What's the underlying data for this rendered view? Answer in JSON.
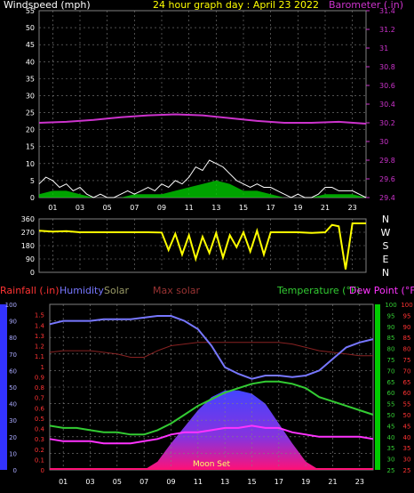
{
  "header": {
    "left_label": "Windspeed (mph)",
    "title": "24 hour graph day : April 23 2022",
    "right_label": "Barometer (.in)"
  },
  "colors": {
    "background": "#000000",
    "grid": "#808080",
    "windspeed": "#ffffff",
    "gust_fill": "#00cc00",
    "barometer": "#cc33cc",
    "direction": "#ffff00",
    "rainfall": "#ff3333",
    "humidity": "#7777ff",
    "solar": "#999966",
    "max_solar": "#882222",
    "temperature": "#33cc33",
    "dew_point": "#ff33ff",
    "temp_axis": "#00cc00",
    "dew_axis": "#ff3333"
  },
  "chart_data": [
    {
      "type": "line",
      "name": "wind-barometer",
      "x_ticks": [
        "01",
        "03",
        "05",
        "07",
        "09",
        "11",
        "13",
        "15",
        "17",
        "19",
        "21",
        "23"
      ],
      "x_range_hours": [
        0,
        24
      ],
      "left_axis": {
        "label": "Windspeed (mph)",
        "range": [
          0,
          55
        ],
        "ticks": [
          0,
          5,
          10,
          15,
          20,
          25,
          30,
          35,
          40,
          45,
          50,
          55
        ]
      },
      "right_axis": {
        "label": "Barometer (.in)",
        "range": [
          29.4,
          31.4
        ],
        "ticks": [
          "29.4",
          "29.6",
          "29.8",
          "30",
          "30.2",
          "30.4",
          "30.6",
          "30.8",
          "31",
          "31.2",
          "31.4"
        ]
      },
      "barometer": {
        "x": [
          0,
          2,
          4,
          6,
          8,
          10,
          12,
          14,
          16,
          18,
          20,
          22,
          24
        ],
        "y": [
          30.2,
          30.21,
          30.23,
          30.26,
          30.28,
          30.29,
          30.28,
          30.25,
          30.22,
          30.2,
          30.2,
          30.21,
          30.19
        ]
      },
      "windspeed": {
        "x": [
          0,
          0.5,
          1,
          1.5,
          2,
          2.5,
          3,
          3.5,
          4,
          4.5,
          5,
          5.5,
          6,
          6.5,
          7,
          7.5,
          8,
          8.5,
          9,
          9.5,
          10,
          10.5,
          11,
          11.5,
          12,
          12.5,
          13,
          13.5,
          14,
          14.5,
          15,
          15.5,
          16,
          16.5,
          17,
          17.5,
          18,
          18.5,
          19,
          19.5,
          20,
          20.5,
          21,
          21.5,
          22,
          22.5,
          23,
          23.5,
          24
        ],
        "y": [
          4,
          6,
          5,
          3,
          4,
          2,
          3,
          1,
          0,
          1,
          0,
          0,
          1,
          2,
          1,
          2,
          3,
          2,
          4,
          3,
          5,
          4,
          6,
          9,
          8,
          11,
          10,
          9,
          7,
          5,
          4,
          3,
          4,
          3,
          3,
          2,
          1,
          0,
          1,
          0,
          0,
          1,
          3,
          3,
          2,
          2,
          2,
          1,
          0
        ]
      },
      "gust": {
        "x": [
          0,
          1,
          2,
          3,
          4,
          5,
          6,
          7,
          8,
          9,
          10,
          11,
          12,
          13,
          14,
          15,
          16,
          17,
          18,
          19,
          20,
          21,
          22,
          23,
          24
        ],
        "y": [
          1,
          2,
          2,
          1,
          0,
          0,
          0,
          1,
          1,
          1,
          2,
          3,
          4,
          5,
          4,
          2,
          2,
          1,
          0,
          0,
          0,
          1,
          1,
          1,
          0
        ]
      }
    },
    {
      "type": "line",
      "name": "wind-direction",
      "y_ticks": [
        "360",
        "270",
        "180",
        "90",
        "0"
      ],
      "y_range": [
        0,
        360
      ],
      "compass_labels": [
        "N",
        "W",
        "S",
        "E",
        "N"
      ],
      "x": [
        0,
        1,
        2,
        3,
        4,
        5,
        6,
        7,
        8,
        9,
        9.5,
        10,
        10.5,
        11,
        11.5,
        12,
        12.5,
        13,
        13.5,
        14,
        14.5,
        15,
        15.5,
        16,
        16.5,
        17,
        18,
        19,
        20,
        21,
        21.5,
        22,
        22.5,
        23,
        24
      ],
      "y": [
        280,
        275,
        278,
        270,
        270,
        270,
        270,
        270,
        270,
        268,
        150,
        260,
        120,
        250,
        90,
        240,
        130,
        265,
        100,
        250,
        170,
        270,
        140,
        280,
        120,
        270,
        270,
        270,
        265,
        270,
        320,
        310,
        20,
        330,
        330
      ]
    },
    {
      "type": "line",
      "name": "weather",
      "x_ticks": [
        "01",
        "03",
        "05",
        "07",
        "09",
        "11",
        "13",
        "15",
        "17",
        "19",
        "21",
        "23"
      ],
      "rain": {
        "label": "Rainfall (.in)",
        "range": [
          0,
          1.6
        ],
        "ticks": [
          "0",
          "0.1",
          "0.2",
          "0.3",
          "0.4",
          "0.5",
          "0.6",
          "0.7",
          "0.8",
          "0.9",
          "1",
          "1.1",
          "1.2",
          "1.3",
          "1.4",
          "1.5"
        ]
      },
      "humidity": {
        "label": "Humidity",
        "range": [
          0,
          100
        ],
        "ticks": [
          "0",
          "10",
          "20",
          "30",
          "40",
          "50",
          "60",
          "70",
          "80",
          "90",
          "100"
        ],
        "x": [
          0,
          1,
          2,
          3,
          4,
          5,
          6,
          7,
          8,
          9,
          10,
          11,
          12,
          13,
          14,
          15,
          16,
          17,
          18,
          19,
          20,
          21,
          22,
          23,
          24
        ],
        "y": [
          88,
          90,
          90,
          90,
          91,
          91,
          91,
          92,
          93,
          93,
          90,
          85,
          75,
          62,
          58,
          55,
          57,
          57,
          56,
          57,
          60,
          67,
          74,
          77,
          79
        ]
      },
      "solar_label": "Solar",
      "solar": {
        "x": [
          0,
          6,
          7,
          8,
          9,
          10,
          11,
          12,
          13,
          14,
          15,
          16,
          17,
          18,
          19,
          20,
          24
        ],
        "y": [
          0,
          0,
          0,
          5,
          16,
          26,
          36,
          44,
          48,
          48,
          46,
          40,
          28,
          16,
          5,
          0,
          0
        ]
      },
      "max_solar_label": "Max solar",
      "max_solar": {
        "x": [
          0,
          1,
          2,
          3,
          4,
          5,
          6,
          7,
          8,
          9,
          10,
          11,
          12,
          13,
          14,
          15,
          16,
          17,
          18,
          19,
          20,
          21,
          22,
          23,
          24
        ],
        "y": [
          71,
          72,
          72,
          72,
          71,
          70,
          68,
          68,
          72,
          75,
          76,
          77,
          77,
          77,
          77,
          77,
          77,
          77,
          76,
          74,
          72,
          71,
          70,
          69,
          69
        ]
      },
      "temperature": {
        "label": "Temperature (°F)",
        "range": [
          25,
          100
        ],
        "ticks": [
          "25",
          "30",
          "35",
          "40",
          "45",
          "50",
          "55",
          "60",
          "65",
          "70",
          "75",
          "80",
          "85",
          "90",
          "95",
          "100"
        ],
        "x": [
          0,
          1,
          2,
          3,
          4,
          5,
          6,
          7,
          8,
          9,
          10,
          11,
          12,
          13,
          14,
          15,
          16,
          17,
          18,
          19,
          20,
          21,
          22,
          23,
          24
        ],
        "y": [
          45,
          44,
          44,
          43,
          42,
          42,
          41,
          41,
          43,
          46,
          50,
          54,
          57,
          60,
          62,
          64,
          65,
          65,
          64,
          62,
          58,
          56,
          54,
          52,
          50
        ]
      },
      "dew_point": {
        "label": "Dew Point (°F)",
        "range": [
          25,
          100
        ],
        "ticks": [
          "25",
          "30",
          "35",
          "40",
          "45",
          "50",
          "55",
          "60",
          "65",
          "70",
          "75",
          "80",
          "85",
          "90",
          "95",
          "100"
        ],
        "x": [
          0,
          1,
          2,
          3,
          4,
          5,
          6,
          7,
          8,
          9,
          10,
          11,
          12,
          13,
          14,
          15,
          16,
          17,
          18,
          19,
          20,
          21,
          22,
          23,
          24
        ],
        "y": [
          39,
          38,
          38,
          38,
          37,
          37,
          37,
          38,
          39,
          41,
          42,
          42,
          43,
          44,
          44,
          45,
          44,
          44,
          42,
          41,
          40,
          40,
          40,
          40,
          39
        ]
      },
      "annotation": "Moon Set"
    }
  ]
}
